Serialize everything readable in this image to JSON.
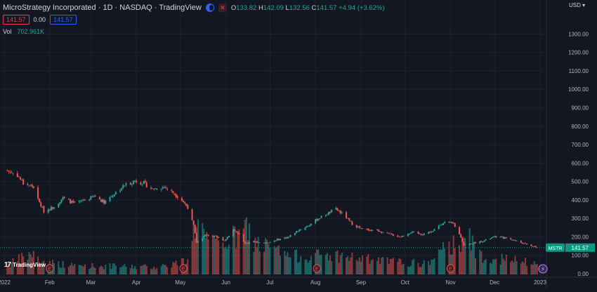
{
  "header": {
    "title": "MicroStrategy Incorporated · 1D · NASDAQ · TradingView",
    "ohlc": {
      "o_label": "O",
      "o": "133.82",
      "h_label": "H",
      "h": "142.09",
      "l_label": "L",
      "l": "132.56",
      "c_label": "C",
      "c": "141.57",
      "change": "+4.94 (+3.62%)"
    },
    "sell_price": "141.57",
    "spread": "0.00",
    "buy_price": "141.57",
    "volume_label": "Vol",
    "volume_value": "702.961K",
    "currency": "USD",
    "logo_text": "TradingView"
  },
  "chart_data": {
    "type": "candlestick",
    "symbol": "MSTR",
    "last_price_label": "141.57",
    "last_price": 141.57,
    "y_axis": {
      "ticks": [
        0,
        100,
        200,
        300,
        400,
        500,
        600,
        700,
        800,
        900,
        1000,
        1100,
        1200,
        1300
      ],
      "tick_labels": [
        "0.00",
        "100.00",
        "200.00",
        "300.00",
        "400.00",
        "500.00",
        "600.00",
        "700.00",
        "800.00",
        "900.00",
        "1000.00",
        "1100.00",
        "1200.00",
        "1300.00"
      ],
      "ylim": [
        0,
        1370
      ]
    },
    "x_axis": {
      "tick_labels": [
        "2022",
        "Feb",
        "Mar",
        "Apr",
        "May",
        "Jun",
        "Jul",
        "Aug",
        "Sep",
        "Oct",
        "Nov",
        "Dec",
        "2023"
      ],
      "tick_dates": [
        "2022-01-01",
        "2022-02-01",
        "2022-03-01",
        "2022-04-01",
        "2022-05-01",
        "2022-06-01",
        "2022-07-01",
        "2022-08-01",
        "2022-09-01",
        "2022-10-01",
        "2022-11-01",
        "2022-12-01",
        "2023-01-01"
      ],
      "range": [
        "2022-01-01",
        "2023-01-01"
      ]
    },
    "price_path": [
      [
        "2022-01-03",
        560
      ],
      [
        "2022-01-10",
        535
      ],
      [
        "2022-01-14",
        490
      ],
      [
        "2022-01-21",
        470
      ],
      [
        "2022-01-24",
        400
      ],
      [
        "2022-01-28",
        340
      ],
      [
        "2022-02-03",
        360
      ],
      [
        "2022-02-10",
        410
      ],
      [
        "2022-02-18",
        380
      ],
      [
        "2022-02-25",
        400
      ],
      [
        "2022-03-04",
        420
      ],
      [
        "2022-03-10",
        390
      ],
      [
        "2022-03-18",
        440
      ],
      [
        "2022-03-24",
        480
      ],
      [
        "2022-03-31",
        505
      ],
      [
        "2022-04-06",
        490
      ],
      [
        "2022-04-12",
        460
      ],
      [
        "2022-04-20",
        470
      ],
      [
        "2022-04-26",
        440
      ],
      [
        "2022-05-02",
        400
      ],
      [
        "2022-05-06",
        360
      ],
      [
        "2022-05-10",
        260
      ],
      [
        "2022-05-12",
        170
      ],
      [
        "2022-05-18",
        210
      ],
      [
        "2022-05-25",
        200
      ],
      [
        "2022-05-31",
        180
      ],
      [
        "2022-06-06",
        240
      ],
      [
        "2022-06-10",
        210
      ],
      [
        "2022-06-14",
        160
      ],
      [
        "2022-06-20",
        175
      ],
      [
        "2022-06-28",
        165
      ],
      [
        "2022-07-06",
        185
      ],
      [
        "2022-07-14",
        200
      ],
      [
        "2022-07-20",
        235
      ],
      [
        "2022-07-27",
        260
      ],
      [
        "2022-08-03",
        300
      ],
      [
        "2022-08-10",
        330
      ],
      [
        "2022-08-15",
        350
      ],
      [
        "2022-08-20",
        320
      ],
      [
        "2022-08-26",
        270
      ],
      [
        "2022-09-02",
        240
      ],
      [
        "2022-09-12",
        235
      ],
      [
        "2022-09-20",
        215
      ],
      [
        "2022-09-28",
        200
      ],
      [
        "2022-10-05",
        225
      ],
      [
        "2022-10-12",
        215
      ],
      [
        "2022-10-20",
        230
      ],
      [
        "2022-10-27",
        280
      ],
      [
        "2022-11-03",
        270
      ],
      [
        "2022-11-08",
        200
      ],
      [
        "2022-11-10",
        155
      ],
      [
        "2022-11-16",
        165
      ],
      [
        "2022-11-24",
        180
      ],
      [
        "2022-12-01",
        200
      ],
      [
        "2022-12-08",
        195
      ],
      [
        "2022-12-15",
        180
      ],
      [
        "2022-12-22",
        160
      ],
      [
        "2022-12-30",
        141.57
      ]
    ],
    "volume_max": 4000000,
    "volume_profile": [
      [
        "2022-01-05",
        700000
      ],
      [
        "2022-01-20",
        1400000
      ],
      [
        "2022-01-25",
        900000
      ],
      [
        "2022-02-15",
        600000
      ],
      [
        "2022-03-15",
        550000
      ],
      [
        "2022-04-15",
        500000
      ],
      [
        "2022-05-05",
        900000
      ],
      [
        "2022-05-11",
        3200000
      ],
      [
        "2022-05-12",
        4000000
      ],
      [
        "2022-05-20",
        1900000
      ],
      [
        "2022-06-13",
        2600000
      ],
      [
        "2022-06-14",
        3300000
      ],
      [
        "2022-06-20",
        2200000
      ],
      [
        "2022-07-15",
        1200000
      ],
      [
        "2022-08-10",
        1300000
      ],
      [
        "2022-09-15",
        900000
      ],
      [
        "2022-10-15",
        700000
      ],
      [
        "2022-11-09",
        2500000
      ],
      [
        "2022-11-10",
        2900000
      ],
      [
        "2022-11-20",
        1300000
      ],
      [
        "2022-12-15",
        900000
      ],
      [
        "2022-12-30",
        702961
      ]
    ],
    "earnings_markers": [
      {
        "date": "2022-02-01",
        "label": "E"
      },
      {
        "date": "2022-05-03",
        "label": "E"
      },
      {
        "date": "2022-08-02",
        "label": "E"
      },
      {
        "date": "2022-11-01",
        "label": "E"
      }
    ],
    "flash_marker_date": "2023-01-01",
    "colors": {
      "up": "#26a69a",
      "down": "#ef5350",
      "background": "#131722",
      "grid": "#1e222d",
      "text": "#b2b5be",
      "badge": "#089981"
    }
  }
}
